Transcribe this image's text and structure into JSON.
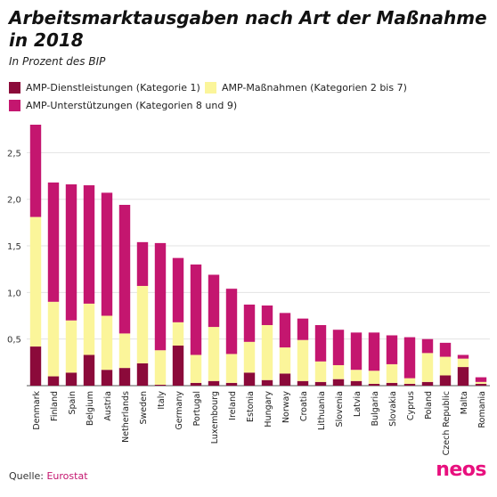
{
  "title": "Arbeitsmarktausgaben nach Art der Maßnahme in 2018",
  "subtitle": "In Prozent des BIP",
  "legend": [
    {
      "label": "AMP-Dienstleistungen (Kategorie 1)",
      "color": "#8b0a3a"
    },
    {
      "label": "AMP-Maßnahmen (Kategorien 2 bis 7)",
      "color": "#fbf59a"
    },
    {
      "label": "AMP-Unterstützungen (Kategorien 8 und 9)",
      "color": "#c4166f"
    }
  ],
  "source": {
    "prefix": "Quelle:",
    "name": "Eurostat"
  },
  "logo": "neos",
  "chart_data": {
    "type": "bar",
    "stacked": true,
    "title": "Arbeitsmarktausgaben nach Art der Maßnahme in 2018",
    "subtitle": "In Prozent des BIP",
    "categories": [
      "Denmark",
      "Finland",
      "Spain",
      "Belgium",
      "Austria",
      "Netherlands",
      "Sweden",
      "Italy",
      "Germany",
      "Portugal",
      "Luxembourg",
      "Ireland",
      "Estonia",
      "Hungary",
      "Norway",
      "Croatia",
      "Lithuania",
      "Slovenia",
      "Latvia",
      "Bulgaria",
      "Slovakia",
      "Cyprus",
      "Poland",
      "Czech Republic",
      "Malta",
      "Romania"
    ],
    "series": [
      {
        "name": "AMP-Dienstleistungen (Kategorie 1)",
        "color": "#8b0a3a",
        "values": [
          0.42,
          0.1,
          0.14,
          0.33,
          0.17,
          0.19,
          0.24,
          0.01,
          0.43,
          0.03,
          0.05,
          0.03,
          0.14,
          0.06,
          0.13,
          0.05,
          0.04,
          0.07,
          0.05,
          0.02,
          0.03,
          0.02,
          0.04,
          0.11,
          0.2,
          0.02
        ]
      },
      {
        "name": "AMP-Maßnahmen (Kategorien 2 bis 7)",
        "color": "#fbf59a",
        "values": [
          1.39,
          0.8,
          0.56,
          0.55,
          0.58,
          0.37,
          0.83,
          0.37,
          0.25,
          0.3,
          0.58,
          0.31,
          0.33,
          0.59,
          0.28,
          0.44,
          0.22,
          0.15,
          0.12,
          0.14,
          0.2,
          0.06,
          0.31,
          0.2,
          0.09,
          0.02
        ]
      },
      {
        "name": "AMP-Unterstützungen (Kategorien 8 und 9)",
        "color": "#c4166f",
        "values": [
          0.99,
          1.28,
          1.46,
          1.27,
          1.32,
          1.38,
          0.47,
          1.15,
          0.69,
          0.97,
          0.56,
          0.7,
          0.4,
          0.21,
          0.37,
          0.23,
          0.39,
          0.38,
          0.4,
          0.41,
          0.31,
          0.44,
          0.15,
          0.15,
          0.04,
          0.05
        ]
      }
    ],
    "ylim": [
      0,
      2.8
    ],
    "yticks": [
      0.5,
      1.0,
      1.5,
      2.0,
      2.5
    ],
    "ytick_labels": [
      "0,5",
      "1,0",
      "1,5",
      "2,0",
      "2,5"
    ],
    "grid": true
  }
}
